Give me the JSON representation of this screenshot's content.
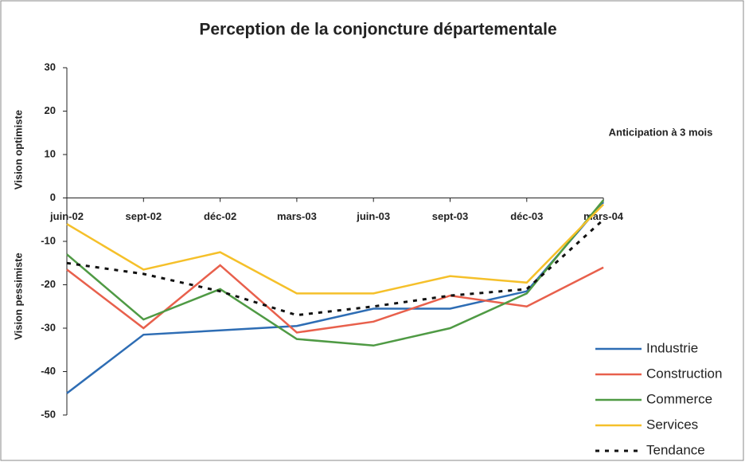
{
  "chart_data": {
    "type": "line",
    "title": "Perception de la conjoncture départementale",
    "y_label_top": "Vision optimiste",
    "y_label_bottom": "Vision pessimiste",
    "annotation": "Anticipation à 3 mois",
    "categories": [
      "juin-02",
      "sept-02",
      "déc-02",
      "mars-03",
      "juin-03",
      "sept-03",
      "déc-03",
      "mars-04"
    ],
    "ylim": [
      -50,
      30
    ],
    "yticks": [
      -50,
      -40,
      -30,
      -20,
      -10,
      0,
      10,
      20,
      30
    ],
    "series": [
      {
        "name": "Industrie",
        "color": "#2e6db4",
        "values": [
          -45,
          -31.5,
          -30.5,
          -29.5,
          -25.5,
          -25.5,
          -21.5,
          -1
        ]
      },
      {
        "name": "Construction",
        "color": "#e8604c",
        "values": [
          -16.5,
          -30,
          -15.5,
          -31,
          -28.5,
          -22.5,
          -25,
          -16
        ]
      },
      {
        "name": "Commerce",
        "color": "#4f9a44",
        "values": [
          -13,
          -28,
          -21,
          -32.5,
          -34,
          -30,
          -22,
          -0.5
        ]
      },
      {
        "name": "Services",
        "color": "#f5c02a",
        "values": [
          -6,
          -16.5,
          -12.5,
          -22,
          -22,
          -18,
          -19.5,
          -1.5
        ]
      },
      {
        "name": "Tendance",
        "color": "#111111",
        "dashed": true,
        "values": [
          -15,
          -17.5,
          -21.5,
          -27,
          -25,
          -22.5,
          -21,
          -5
        ]
      }
    ]
  }
}
